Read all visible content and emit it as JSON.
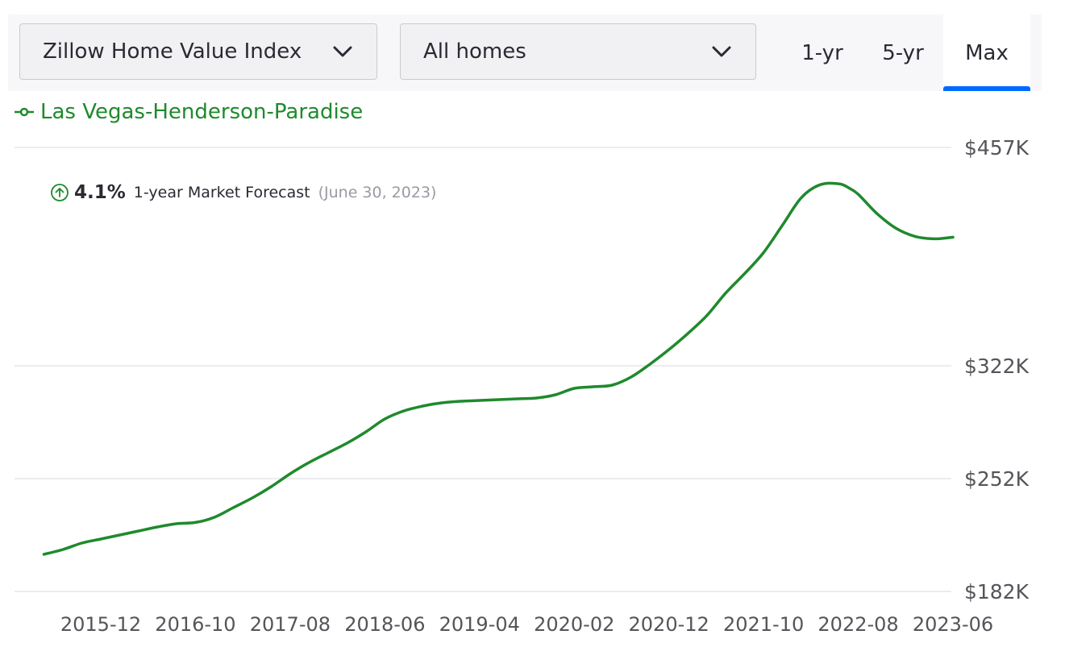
{
  "controls": {
    "metric_select": {
      "value": "Zillow Home Value Index",
      "icon": "chevron-down-icon"
    },
    "home_type_select": {
      "value": "All homes",
      "icon": "chevron-down-icon"
    },
    "range_tabs": [
      {
        "label": "1-yr",
        "selected": false
      },
      {
        "label": "5-yr",
        "selected": false
      },
      {
        "label": "Max",
        "selected": true
      }
    ],
    "accent_color": "#006aff"
  },
  "forecast": {
    "icon": "arrow-up-circle-icon",
    "percent": "4.1%",
    "label": "1-year Market Forecast",
    "date": "(June 30, 2023)"
  },
  "chart_data": {
    "type": "line",
    "title": "",
    "xlabel": "",
    "ylabel": "",
    "grid": true,
    "legend_placement": "top-left",
    "y_ticks": [
      {
        "label": "$457K",
        "value": 457000
      },
      {
        "label": "$322K",
        "value": 322000
      },
      {
        "label": "$252K",
        "value": 252000
      },
      {
        "label": "$182K",
        "value": 182000
      }
    ],
    "ylim": [
      182000,
      457000
    ],
    "x_ticks": [
      "2015-12",
      "2016-10",
      "2017-08",
      "2018-06",
      "2019-04",
      "2020-02",
      "2020-12",
      "2021-10",
      "2022-08",
      "2023-06"
    ],
    "xlim": [
      "2015-06",
      "2023-06"
    ],
    "series": [
      {
        "name": "Las Vegas-Henderson-Paradise",
        "color": "#1e8a2c",
        "x": [
          "2015-06",
          "2015-08",
          "2015-10",
          "2015-12",
          "2016-02",
          "2016-04",
          "2016-06",
          "2016-08",
          "2016-10",
          "2016-12",
          "2017-02",
          "2017-04",
          "2017-06",
          "2017-08",
          "2017-10",
          "2017-12",
          "2018-02",
          "2018-04",
          "2018-06",
          "2018-08",
          "2018-10",
          "2018-12",
          "2019-02",
          "2019-04",
          "2019-06",
          "2019-08",
          "2019-10",
          "2019-12",
          "2020-02",
          "2020-04",
          "2020-06",
          "2020-08",
          "2020-10",
          "2020-12",
          "2021-02",
          "2021-04",
          "2021-06",
          "2021-08",
          "2021-10",
          "2021-12",
          "2022-02",
          "2022-04",
          "2022-06",
          "2022-07",
          "2022-08",
          "2022-10",
          "2022-12",
          "2023-02",
          "2023-04",
          "2023-06"
        ],
        "values": [
          205000,
          208000,
          212000,
          214500,
          217000,
          219500,
          222000,
          224000,
          224800,
          228000,
          234000,
          240000,
          247000,
          255000,
          262000,
          268000,
          274000,
          281000,
          289000,
          294000,
          297000,
          299000,
          300000,
          300500,
          301000,
          301500,
          302000,
          304000,
          308000,
          309000,
          310000,
          315000,
          323000,
          332000,
          342000,
          353000,
          367000,
          379000,
          392000,
          409000,
          426000,
          434000,
          434500,
          432000,
          428000,
          416000,
          407000,
          402000,
          400500,
          401500
        ]
      }
    ]
  }
}
